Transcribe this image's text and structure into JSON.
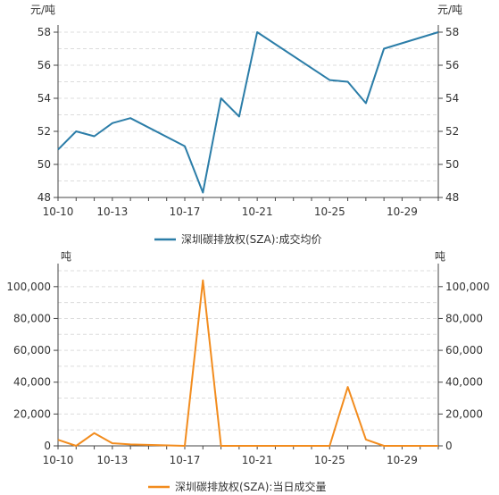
{
  "chart_data": [
    {
      "type": "line",
      "y_unit": "元/吨",
      "x_tick_labels": [
        "10-10",
        "10-13",
        "10-17",
        "10-21",
        "10-25",
        "10-29"
      ],
      "x": [
        "10-10",
        "10-11",
        "10-12",
        "10-13",
        "10-14",
        "10-15",
        "10-16",
        "10-17",
        "10-18",
        "10-19",
        "10-20",
        "10-21",
        "10-22",
        "10-23",
        "10-24",
        "10-25",
        "10-26",
        "10-27",
        "10-28",
        "10-29",
        "10-30",
        "10-31"
      ],
      "series": [
        {
          "name": "深圳碳排放权(SZA):成交均价",
          "color": "#2b7da8",
          "values": [
            50.9,
            52.0,
            51.7,
            52.5,
            52.8,
            null,
            null,
            51.1,
            48.3,
            54.0,
            52.9,
            58.0,
            null,
            null,
            null,
            55.1,
            55.0,
            53.7,
            57.0,
            null,
            null,
            58.0
          ]
        }
      ],
      "ylim": [
        48,
        58
      ],
      "y_ticks": [
        48,
        50,
        52,
        54,
        56,
        58
      ],
      "grid": true,
      "legend": "bottom"
    },
    {
      "type": "line",
      "y_unit": "吨",
      "x_tick_labels": [
        "10-10",
        "10-13",
        "10-17",
        "10-21",
        "10-25",
        "10-29"
      ],
      "x": [
        "10-10",
        "10-11",
        "10-12",
        "10-13",
        "10-14",
        "10-15",
        "10-16",
        "10-17",
        "10-18",
        "10-19",
        "10-20",
        "10-21",
        "10-22",
        "10-23",
        "10-24",
        "10-25",
        "10-26",
        "10-27",
        "10-28",
        "10-29",
        "10-30",
        "10-31"
      ],
      "series": [
        {
          "name": "深圳碳排放权(SZA):当日成交量",
          "color": "#f28c1e",
          "values": [
            3800,
            0,
            8000,
            1600,
            900,
            null,
            null,
            0,
            104000,
            0,
            0,
            0,
            null,
            null,
            null,
            0,
            37000,
            4000,
            0,
            null,
            null,
            0
          ]
        }
      ],
      "ylim": [
        0,
        110000
      ],
      "y_ticks": [
        0,
        20000,
        40000,
        60000,
        80000,
        100000
      ],
      "y_tick_labels": [
        "0",
        "20,000",
        "40,000",
        "60,000",
        "80,000",
        "100,000"
      ],
      "grid": true,
      "legend": "bottom"
    }
  ]
}
